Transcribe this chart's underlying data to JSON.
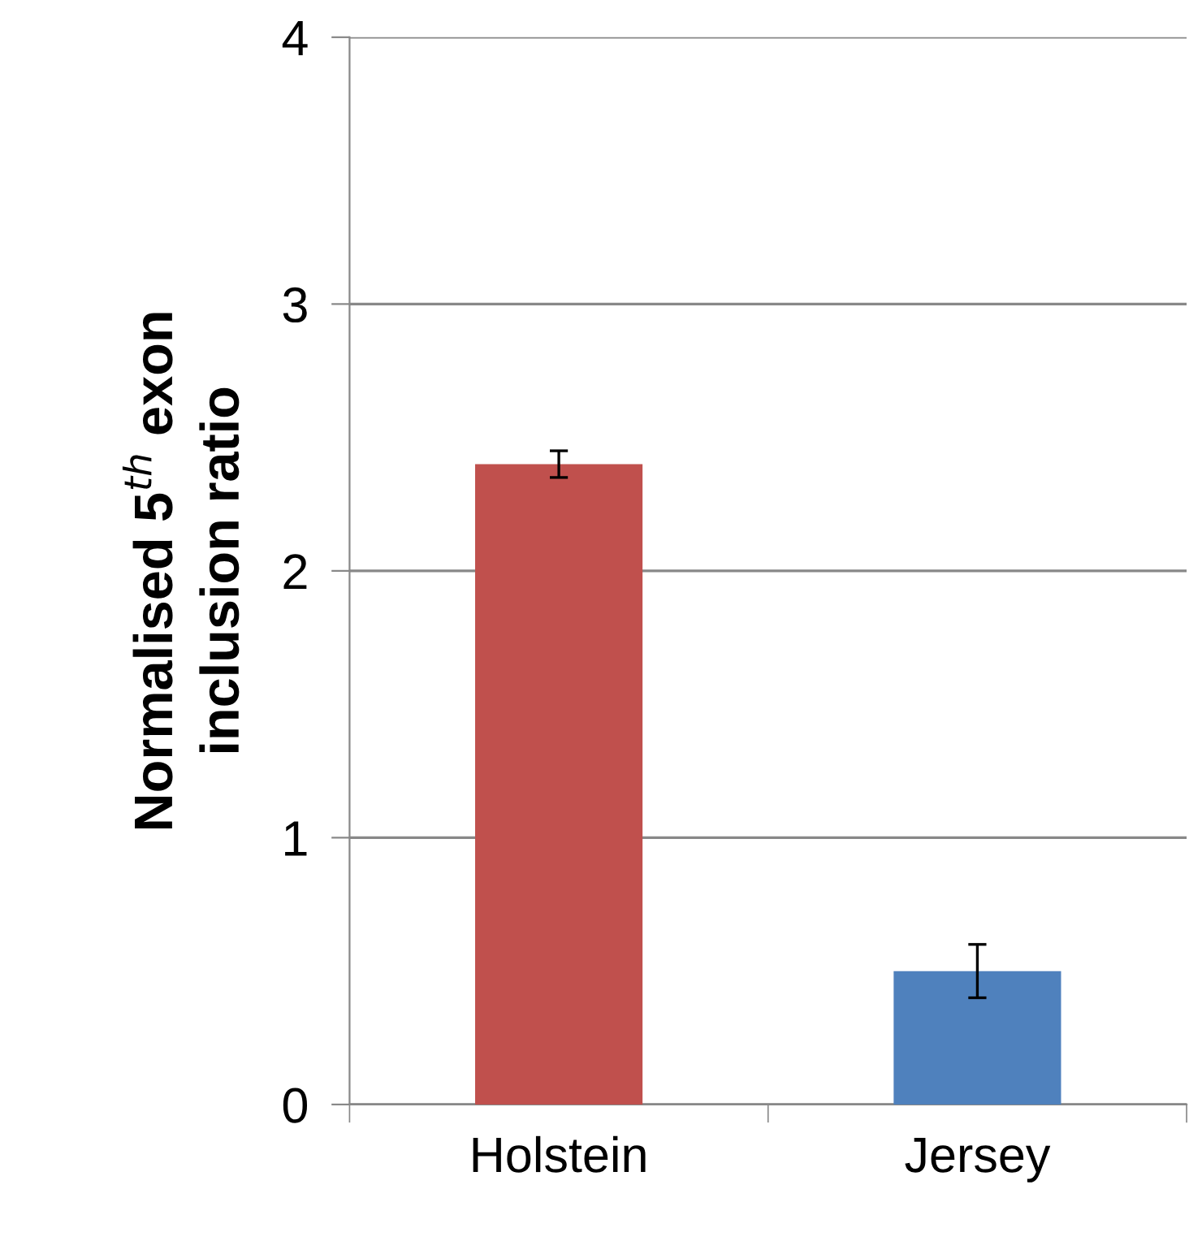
{
  "chart_data": {
    "type": "bar",
    "ylabel": "Normalised 5$^{th}$ exon\ninclusion ratio",
    "categories": [
      "Holstein",
      "Jersey"
    ],
    "values": [
      2.4,
      0.5
    ],
    "colors": [
      "#c0504d",
      "#4f81bd"
    ],
    "errors": [
      0.05,
      0.1
    ],
    "ylim": [
      0,
      4
    ],
    "yticks": [
      0,
      1,
      2,
      3,
      4
    ],
    "grid": "y"
  }
}
